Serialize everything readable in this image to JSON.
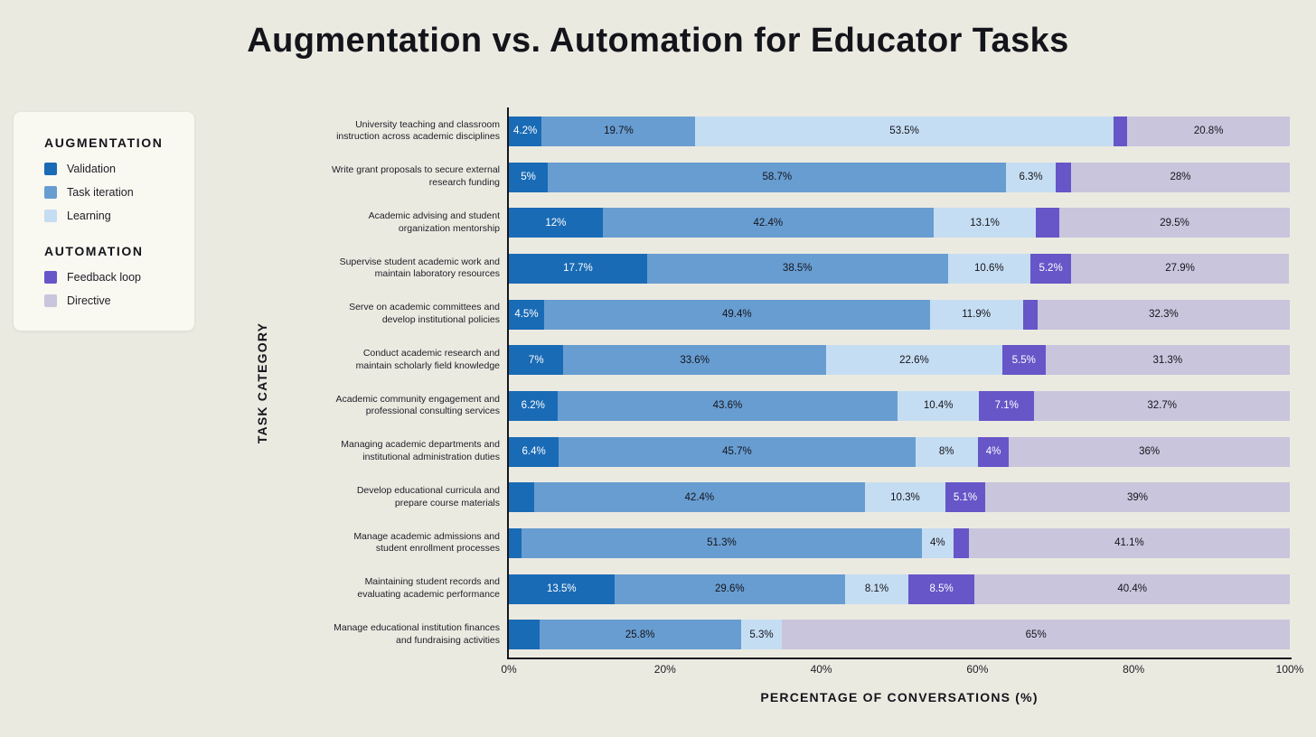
{
  "title": "Augmentation vs. Automation for Educator Tasks",
  "legend": {
    "groups": [
      {
        "title": "AUGMENTATION",
        "items": [
          {
            "label": "Validation",
            "color": "#1a6bb5"
          },
          {
            "label": "Task iteration",
            "color": "#689dd1"
          },
          {
            "label": "Learning",
            "color": "#c5ddf2"
          }
        ]
      },
      {
        "title": "AUTOMATION",
        "items": [
          {
            "label": "Feedback loop",
            "color": "#6656c8"
          },
          {
            "label": "Directive",
            "color": "#c9c5dc"
          }
        ]
      }
    ]
  },
  "chart_data": {
    "type": "bar",
    "stacked": true,
    "orientation": "horizontal",
    "title": "Augmentation vs. Automation for Educator Tasks",
    "xlabel": "PERCENTAGE OF CONVERSATIONS (%)",
    "ylabel": "TASK CATEGORY",
    "xlim": [
      0,
      100
    ],
    "x_ticks": [
      "0%",
      "20%",
      "40%",
      "60%",
      "80%",
      "100%"
    ],
    "legend_position": "left",
    "grid": false,
    "label_min_value": 4,
    "series": [
      {
        "name": "Validation",
        "color": "#1a6bb5",
        "label_color": "#ffffff"
      },
      {
        "name": "Task iteration",
        "color": "#689dd1",
        "label_color": "#14141b"
      },
      {
        "name": "Learning",
        "color": "#c5ddf2",
        "label_color": "#14141b"
      },
      {
        "name": "Feedback loop",
        "color": "#6656c8",
        "label_color": "#ffffff"
      },
      {
        "name": "Directive",
        "color": "#c9c5dc",
        "label_color": "#14141b"
      }
    ],
    "rows": [
      {
        "category": "University teaching and classroom instruction across academic disciplines",
        "values": [
          4.2,
          19.7,
          53.5,
          1.8,
          20.8
        ]
      },
      {
        "category": "Write grant proposals to secure external research funding",
        "values": [
          5,
          58.7,
          6.3,
          2,
          28
        ]
      },
      {
        "category": "Academic advising and student organization mentorship",
        "values": [
          12,
          42.4,
          13.1,
          3,
          29.5
        ]
      },
      {
        "category": "Supervise student academic work and maintain laboratory resources",
        "values": [
          17.7,
          38.5,
          10.6,
          5.2,
          27.9
        ]
      },
      {
        "category": "Serve on academic committees and develop institutional policies",
        "values": [
          4.5,
          49.4,
          11.9,
          1.9,
          32.3
        ]
      },
      {
        "category": "Conduct academic research and maintain scholarly field knowledge",
        "values": [
          7,
          33.6,
          22.6,
          5.5,
          31.3
        ]
      },
      {
        "category": "Academic community engagement and professional consulting services",
        "values": [
          6.2,
          43.6,
          10.4,
          7.1,
          32.7
        ]
      },
      {
        "category": "Managing academic departments and institutional administration duties",
        "values": [
          6.4,
          45.7,
          8,
          4,
          36
        ]
      },
      {
        "category": "Develop educational curricula and prepare course materials",
        "values": [
          3.2,
          42.4,
          10.3,
          5.1,
          39
        ]
      },
      {
        "category": "Manage academic admissions and student enrollment processes",
        "values": [
          1.6,
          51.3,
          4,
          2,
          41.1
        ]
      },
      {
        "category": "Maintaining student records and evaluating academic performance",
        "values": [
          13.5,
          29.6,
          8.1,
          8.5,
          40.4
        ]
      },
      {
        "category": "Manage educational institution finances and fundraising activities",
        "values": [
          3.9,
          25.8,
          5.3,
          0,
          65
        ]
      }
    ]
  }
}
